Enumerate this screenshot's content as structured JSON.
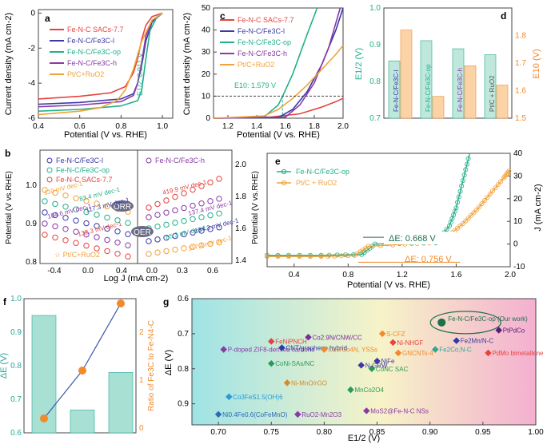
{
  "colors": {
    "sac": "#e8423f",
    "fel": "#3a3aa8",
    "feop": "#22b08a",
    "feh": "#8a3aa6",
    "ptc": "#f2a23a",
    "orange": "#f08a2a",
    "teal": "#2aa898",
    "purple": "#7a2a9a",
    "gray": "#555555"
  },
  "legend": {
    "sac": "Fe-N-C SACs-7.7",
    "fel": "Fe-N-C/Fe3C-l",
    "feop": "Fe-N-C/Fe3C-op",
    "feh": "Fe-N-C/Fe3C-h",
    "ptc": "Pt/C+RuO2",
    "ptc_sp": "Pt/C + RuO2"
  },
  "chart_data": [
    {
      "panel": "a",
      "type": "line",
      "xlabel": "Potential (V vs. RHE)",
      "ylabel": "Current density (mA cm-2)",
      "xlim": [
        0.4,
        1.05
      ],
      "ylim": [
        -6,
        0.2
      ],
      "xticks": [
        "0.4",
        "0.6",
        "0.8",
        "1.0"
      ],
      "yticks": [
        "-6",
        "-4",
        "-2",
        "0"
      ],
      "annotation": "E1/2: 0.911 V",
      "series": [
        {
          "name": "Fe-N-C SACs-7.7",
          "x": [
            0.4,
            0.6,
            0.75,
            0.82,
            0.86,
            0.88,
            0.9,
            0.92,
            0.95,
            1.0
          ],
          "y": [
            -4.9,
            -4.75,
            -4.55,
            -4.2,
            -3.4,
            -2.6,
            -1.5,
            -0.7,
            -0.2,
            0
          ]
        },
        {
          "name": "Fe-N-C/Fe3C-l",
          "x": [
            0.4,
            0.6,
            0.8,
            0.86,
            0.88,
            0.9,
            0.92,
            0.95,
            1.0
          ],
          "y": [
            -5.2,
            -5.1,
            -4.9,
            -4.6,
            -4.0,
            -3.0,
            -1.6,
            -0.5,
            0
          ]
        },
        {
          "name": "Fe-N-C/Fe3C-op",
          "x": [
            0.4,
            0.6,
            0.8,
            0.88,
            0.9,
            0.92,
            0.94,
            0.97,
            1.0
          ],
          "y": [
            -5.6,
            -5.5,
            -5.3,
            -5.0,
            -4.4,
            -2.6,
            -1.0,
            -0.3,
            0
          ]
        },
        {
          "name": "Fe-N-C/Fe3C-h",
          "x": [
            0.4,
            0.6,
            0.8,
            0.86,
            0.88,
            0.9,
            0.92,
            0.95,
            1.0
          ],
          "y": [
            -5.35,
            -5.25,
            -5.05,
            -4.7,
            -4.0,
            -2.8,
            -1.3,
            -0.4,
            0
          ]
        },
        {
          "name": "Pt/C+RuO2",
          "x": [
            0.4,
            0.6,
            0.7,
            0.78,
            0.82,
            0.86,
            0.9,
            0.95,
            1.0
          ],
          "y": [
            -5.8,
            -5.6,
            -5.4,
            -5.0,
            -4.4,
            -3.2,
            -1.6,
            -0.4,
            0
          ]
        }
      ]
    },
    {
      "panel": "c",
      "type": "line",
      "xlabel": "Potential (V vs. RHE)",
      "ylabel": "Current density (mA cm-2)",
      "xlim": [
        1.1,
        2.0
      ],
      "ylim": [
        0,
        50
      ],
      "xticks": [
        "1.2",
        "1.4",
        "1.6",
        "1.8",
        "2.0"
      ],
      "yticks": [
        "0",
        "10",
        "20",
        "30",
        "40",
        "50"
      ],
      "annotation": "E10: 1.579 V",
      "series": [
        {
          "name": "Fe-N-C SACs-7.7",
          "x": [
            1.1,
            1.5,
            1.7,
            1.85,
            1.95,
            2.0
          ],
          "y": [
            0,
            0.5,
            2,
            5,
            7.5,
            9
          ]
        },
        {
          "name": "Fe-N-C/Fe3C-l",
          "x": [
            1.1,
            1.55,
            1.65,
            1.75,
            1.85,
            1.95,
            2.0
          ],
          "y": [
            0,
            0.3,
            4,
            12,
            24,
            40,
            50
          ]
        },
        {
          "name": "Fe-N-C/Fe3C-op",
          "x": [
            1.1,
            1.45,
            1.55,
            1.58,
            1.65,
            1.75,
            1.82
          ],
          "y": [
            0,
            0.5,
            6,
            10,
            20,
            38,
            50
          ]
        },
        {
          "name": "Fe-N-C/Fe3C-h",
          "x": [
            1.1,
            1.6,
            1.7,
            1.8,
            1.9,
            1.98
          ],
          "y": [
            0,
            0.5,
            6,
            16,
            32,
            50
          ]
        },
        {
          "name": "Pt/C+RuO2",
          "x": [
            1.1,
            1.45,
            1.55,
            1.65,
            1.75,
            1.85,
            1.95,
            2.0
          ],
          "y": [
            0,
            1,
            4,
            9,
            15,
            22,
            29,
            33
          ]
        }
      ]
    },
    {
      "panel": "d",
      "type": "bar",
      "ylabel_left": "E1/2 (V)",
      "ylabel_right": "E10 (V)",
      "categories": [
        "Fe-N-C/Fe3C-l",
        "Fe-N-C/Fe3C-op",
        "Fe-N-C/Fe3C-h",
        "Pt/C + RuO2"
      ],
      "ylim_left": [
        0.7,
        1.0
      ],
      "ylim_right": [
        1.5,
        1.9
      ],
      "yticks_left": [
        "0.7",
        "0.8",
        "0.9",
        "1.0"
      ],
      "yticks_right": [
        "1.5",
        "1.6",
        "1.7",
        "1.8"
      ],
      "series": [
        {
          "name": "E1/2",
          "axis": "left",
          "values": [
            0.856,
            0.911,
            0.889,
            0.873
          ]
        },
        {
          "name": "E10",
          "axis": "right",
          "values": [
            1.82,
            1.579,
            1.69,
            1.62
          ]
        }
      ]
    },
    {
      "panel": "b",
      "type": "scatter",
      "xlabel": "Log J (mA cm-2)",
      "ylabel_left": "Potential (V vs.RHE)",
      "ylabel_right": "Potential (V vs.RHE)",
      "xticks_left": [
        "-0.4",
        "0.0",
        "0.4"
      ],
      "xticks_right": [
        "0.0",
        "0.3",
        "0.6"
      ],
      "yticks_left": [
        "0.8",
        "0.9",
        "1.0"
      ],
      "yticks_right": [
        "1.4",
        "1.6",
        "1.8",
        "2.0"
      ],
      "labels": [
        "ORR",
        "OER",
        "Pt/C+RuO2"
      ],
      "tafel_orr": [
        "110 mV dec-1",
        "83.4 mV dec-1",
        "117.3 mV dec-1",
        "104.6 mV dec-1",
        "132.3 mV dec-1"
      ],
      "tafel_oer": [
        "419.9 mV dec-1",
        "137.4 mV dec-1",
        "85.3 mV dec-1",
        "134.3 mV dec-1",
        "117.4 mV dec-1"
      ]
    },
    {
      "panel": "e",
      "type": "line",
      "xlabel": "Potential (V vs. RHE)",
      "ylabel": "J (mA cm-2)",
      "xlim": [
        0.2,
        2.0
      ],
      "ylim": [
        -10,
        40
      ],
      "xticks": [
        "0.4",
        "0.8",
        "1.2",
        "1.6",
        "2.0"
      ],
      "yticks": [
        "-10",
        "0",
        "10",
        "20",
        "30",
        "40"
      ],
      "annotations": [
        "ΔE: 0.668 V",
        "ΔE: 0.756 V"
      ],
      "series": [
        {
          "name": "Fe-N-C/Fe3C-op",
          "x": [
            0.2,
            0.6,
            0.9,
            1.0,
            1.45,
            1.55,
            1.6,
            1.65,
            1.7
          ],
          "y": [
            -5,
            -5,
            -4.6,
            0,
            0.5,
            8,
            16,
            28,
            40
          ]
        },
        {
          "name": "Pt/C + RuO2",
          "x": [
            0.2,
            0.6,
            0.85,
            0.95,
            1.4,
            1.55,
            1.65,
            1.75,
            1.85,
            1.95,
            2.0
          ],
          "y": [
            -5.5,
            -5.5,
            -5,
            -1,
            0.5,
            4,
            9,
            15,
            22,
            29,
            33
          ]
        }
      ]
    },
    {
      "panel": "f",
      "type": "bar",
      "ylabel_left": "ΔE (V)",
      "ylabel_right": "Ratio of Fe3C to Fe-N4-C",
      "yticks_left": [
        "0.6",
        "0.7",
        "0.8",
        "0.9",
        "1.0"
      ],
      "yticks_right": [
        "0",
        "1",
        "2"
      ],
      "bars": [
        0.95,
        0.668,
        0.78
      ],
      "ratio": [
        0.2,
        1.2,
        2.6
      ]
    },
    {
      "panel": "g",
      "type": "scatter",
      "xlabel": "E1/2 (V)",
      "ylabel": "ΔE (V)",
      "xticks": [
        "0.70",
        "0.75",
        "0.80",
        "0.85",
        "0.90",
        "0.95",
        "1.00"
      ],
      "yticks": [
        "0.6",
        "0.7",
        "0.8",
        "0.9"
      ],
      "points": [
        {
          "label": "Fe-N-C/Fe3C-op (Our work)",
          "x": 0.911,
          "y": 0.668
        },
        {
          "label": "PtPdCo",
          "x": 0.965,
          "y": 0.69
        },
        {
          "label": "Fe2Mn/N-C",
          "x": 0.925,
          "y": 0.72
        },
        {
          "label": "PdMo bimetallene",
          "x": 0.955,
          "y": 0.755
        },
        {
          "label": "Fe2Co,N-C",
          "x": 0.905,
          "y": 0.745
        },
        {
          "label": "P-doped ZIF8-derived carbons",
          "x": 0.705,
          "y": 0.745
        },
        {
          "label": "FeNiPNCH",
          "x": 0.75,
          "y": 0.722
        },
        {
          "label": "CNT/graphene hybrid",
          "x": 0.76,
          "y": 0.74
        },
        {
          "label": "CoNi-SAs/NC",
          "x": 0.75,
          "y": 0.785
        },
        {
          "label": "Ni-MnO/rGO",
          "x": 0.765,
          "y": 0.84
        },
        {
          "label": "Co3FeS1.5(OH)6",
          "x": 0.71,
          "y": 0.88
        },
        {
          "label": "Ni0.4Fe0.6(CoFeMnO)",
          "x": 0.7,
          "y": 0.93
        },
        {
          "label": "RuO2-Mn2O3",
          "x": 0.775,
          "y": 0.93
        },
        {
          "label": "Co2.9N/CNW/CC",
          "x": 0.785,
          "y": 0.71
        },
        {
          "label": "Co3/Co4N, YSSs",
          "x": 0.8,
          "y": 0.745
        },
        {
          "label": "S-CFZ",
          "x": 0.855,
          "y": 0.7
        },
        {
          "label": "Ni-NHGF",
          "x": 0.865,
          "y": 0.725
        },
        {
          "label": "CoNC SAC",
          "x": 0.845,
          "y": 0.8
        },
        {
          "label": "MnCo2O4",
          "x": 0.825,
          "y": 0.86
        },
        {
          "label": "MoS2@Fe-N-C NSs",
          "x": 0.84,
          "y": 0.92
        },
        {
          "label": "NiFe",
          "x": 0.85,
          "y": 0.778
        },
        {
          "label": "GNCNTs-4",
          "x": 0.87,
          "y": 0.755
        },
        {
          "label": "N-GRW",
          "x": 0.835,
          "y": 0.79
        }
      ]
    }
  ]
}
